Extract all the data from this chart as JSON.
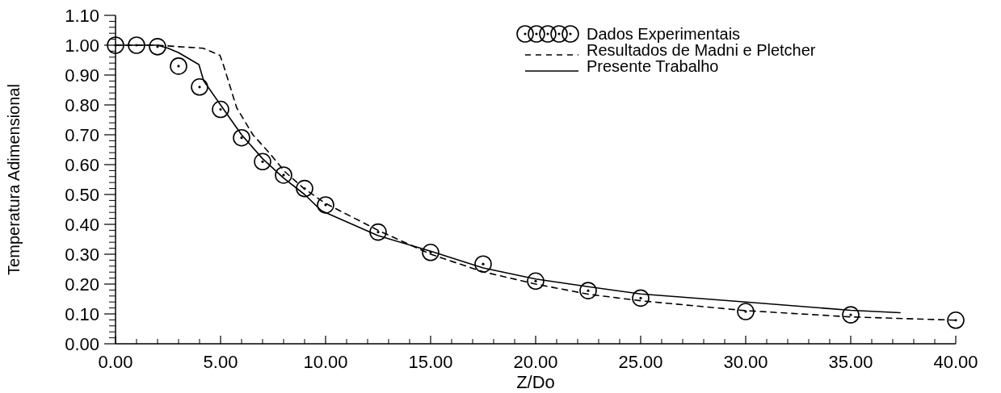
{
  "chart_data": {
    "type": "line",
    "xlabel": "Z/Do",
    "ylabel": "Temperatura Adimensional",
    "xlim": [
      0,
      40
    ],
    "ylim": [
      0,
      1.1
    ],
    "xticks": [
      {
        "value": 0,
        "label": "0.00"
      },
      {
        "value": 5,
        "label": "5.00"
      },
      {
        "value": 10,
        "label": "10.00"
      },
      {
        "value": 15,
        "label": "15.00"
      },
      {
        "value": 20,
        "label": "20.00"
      },
      {
        "value": 25,
        "label": "25.00"
      },
      {
        "value": 30,
        "label": "30.00"
      },
      {
        "value": 35,
        "label": "35.00"
      },
      {
        "value": 40,
        "label": "40.00"
      }
    ],
    "yticks": [
      {
        "value": 0,
        "label": "0.00"
      },
      {
        "value": 0.1,
        "label": "0.10"
      },
      {
        "value": 0.2,
        "label": "0.20"
      },
      {
        "value": 0.3,
        "label": "0.30"
      },
      {
        "value": 0.4,
        "label": "0.40"
      },
      {
        "value": 0.5,
        "label": "0.50"
      },
      {
        "value": 0.6,
        "label": "0.60"
      },
      {
        "value": 0.7,
        "label": "0.70"
      },
      {
        "value": 0.8,
        "label": "0.80"
      },
      {
        "value": 0.9,
        "label": "0.90"
      },
      {
        "value": 1.0,
        "label": "1.00"
      },
      {
        "value": 1.1,
        "label": "1.10"
      }
    ],
    "grid": false,
    "legend": "top right",
    "series": [
      {
        "name": "Dados Experimentais",
        "type": "scatter",
        "color": "#000000",
        "marker": "circle",
        "x": [
          0,
          1,
          2,
          3,
          4,
          5,
          6,
          7,
          8,
          9,
          10,
          12.5,
          15,
          17.5,
          20,
          22.5,
          25,
          30,
          35,
          40
        ],
        "values": [
          1.0,
          1.0,
          0.995,
          0.93,
          0.86,
          0.785,
          0.69,
          0.61,
          0.565,
          0.52,
          0.465,
          0.374,
          0.306,
          0.267,
          0.21,
          0.178,
          0.153,
          0.108,
          0.097,
          0.079
        ]
      },
      {
        "name": "Resultados de Madni e Pletcher",
        "type": "line",
        "color": "#000000",
        "line_style": "dashed",
        "marker": "none",
        "x": [
          0,
          2,
          3,
          4.17,
          4.97,
          5.13,
          5.77,
          6.54,
          7.31,
          8.08,
          8.97,
          10,
          12.5,
          15,
          17.5,
          20,
          22.5,
          25,
          30,
          35,
          40
        ],
        "values": [
          1.0,
          1.0,
          0.995,
          0.99,
          0.966,
          0.935,
          0.79,
          0.7,
          0.64,
          0.575,
          0.52,
          0.47,
          0.38,
          0.3,
          0.241,
          0.2,
          0.166,
          0.144,
          0.111,
          0.09,
          0.079
        ]
      },
      {
        "name": "Presente Trabalho",
        "type": "line",
        "color": "#000000",
        "line_style": "solid",
        "marker": "none",
        "x": [
          0,
          1,
          2,
          2.5,
          3,
          3.97,
          4.2,
          5,
          6,
          7,
          8,
          9,
          9.81,
          12.5,
          15,
          17.5,
          20,
          22.5,
          25,
          30,
          35,
          37.35
        ],
        "values": [
          1.0,
          1.0,
          1.0,
          0.99,
          0.975,
          0.935,
          0.88,
          0.8,
          0.7,
          0.62,
          0.555,
          0.5,
          0.445,
          0.362,
          0.31,
          0.254,
          0.217,
          0.191,
          0.167,
          0.14,
          0.112,
          0.104
        ]
      }
    ]
  }
}
